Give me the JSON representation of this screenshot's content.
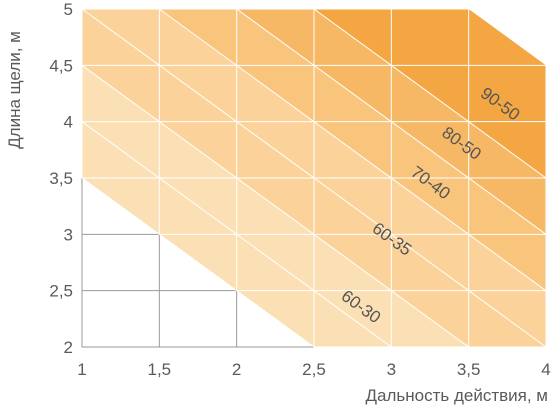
{
  "chart_data": {
    "type": "area",
    "xlabel": "Дальность действия, м",
    "ylabel": "Длина щели, м",
    "xlim": [
      1,
      4
    ],
    "ylim": [
      2,
      5
    ],
    "x_ticks": [
      "1",
      "1,5",
      "2",
      "2,5",
      "3",
      "3,5",
      "4"
    ],
    "y_ticks": [
      "2",
      "2,5",
      "3",
      "3,5",
      "4",
      "4,5",
      "5"
    ],
    "grid": true,
    "boundary_slope": -1,
    "bands": [
      {
        "name": "60-30",
        "intercept_low": 4.5,
        "intercept_high": 5.5,
        "color": "#fce0b5"
      },
      {
        "name": "60-35",
        "intercept_low": 5.5,
        "intercept_high": 6.5,
        "color": "#fbd39a"
      },
      {
        "name": "70-40",
        "intercept_low": 6.5,
        "intercept_high": 7.0,
        "color": "#f9c47c"
      },
      {
        "name": "80-50",
        "intercept_low": 7.0,
        "intercept_high": 7.5,
        "color": "#f7b865"
      },
      {
        "name": "90-50",
        "intercept_low": 7.5,
        "intercept_high": 9.0,
        "color": "#f3a642"
      }
    ],
    "color_gradient_lines": [
      5.0,
      6.0
    ]
  }
}
